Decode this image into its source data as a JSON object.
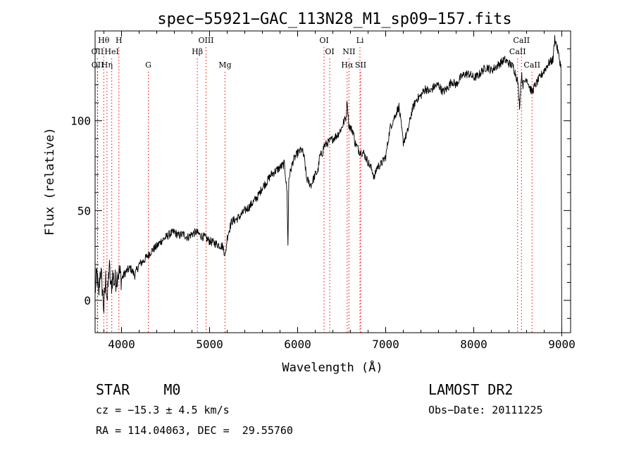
{
  "chart_data": {
    "type": "line",
    "title": "spec−55921−GAC_113N28_M1_sp09−157.fits",
    "xlabel": "Wavelength (Å)",
    "ylabel": "Flux (relative)",
    "xlim": [
      3700,
      9100
    ],
    "ylim": [
      -18,
      150
    ],
    "xticks": [
      4000,
      5000,
      6000,
      7000,
      8000,
      9000
    ],
    "yticks": [
      0,
      50,
      100
    ],
    "xtick_labels": [
      "4000",
      "5000",
      "6000",
      "7000",
      "8000",
      "9000"
    ],
    "ytick_labels": [
      "0",
      "50",
      "100"
    ],
    "grid": false,
    "series": [
      {
        "x": [
          3700,
          3720,
          3740,
          3760,
          3780,
          3800,
          3820,
          3840,
          3860,
          3880,
          3900,
          3920,
          3940,
          3960,
          3980,
          4000,
          4050,
          4100,
          4150,
          4200,
          4250,
          4300,
          4350,
          4400,
          4450,
          4500,
          4550,
          4600,
          4650,
          4700,
          4750,
          4800,
          4850,
          4900,
          4950,
          5000,
          5050,
          5100,
          5150,
          5180,
          5200,
          5250,
          5300,
          5350,
          5400,
          5450,
          5500,
          5550,
          5600,
          5650,
          5700,
          5750,
          5800,
          5850,
          5880,
          5890,
          5900,
          5920,
          5950,
          6000,
          6050,
          6080,
          6100,
          6150,
          6200,
          6230,
          6250,
          6280,
          6300,
          6350,
          6400,
          6450,
          6500,
          6530,
          6550,
          6563,
          6580,
          6600,
          6630,
          6650,
          6700,
          6750,
          6800,
          6850,
          6870,
          6900,
          6950,
          7000,
          7050,
          7100,
          7150,
          7200,
          7250,
          7300,
          7350,
          7400,
          7450,
          7500,
          7550,
          7600,
          7650,
          7700,
          7750,
          7800,
          7850,
          7900,
          7950,
          8000,
          8050,
          8100,
          8150,
          8200,
          8250,
          8300,
          8350,
          8400,
          8450,
          8500,
          8520,
          8542,
          8560,
          8600,
          8640,
          8662,
          8700,
          8750,
          8800,
          8850,
          8900,
          8920,
          8950,
          8990,
          9000
        ],
        "y": [
          5,
          15,
          2,
          18,
          8,
          -5,
          12,
          0,
          20,
          6,
          14,
          10,
          12,
          16,
          15,
          12,
          16,
          18,
          14,
          20,
          22,
          25,
          28,
          30,
          33,
          35,
          37,
          38,
          36,
          37,
          35,
          37,
          38,
          36,
          35,
          33,
          32,
          31,
          30,
          25,
          35,
          44,
          45,
          47,
          50,
          52,
          55,
          58,
          63,
          66,
          70,
          72,
          74,
          76,
          60,
          30,
          68,
          72,
          78,
          82,
          84,
          78,
          68,
          64,
          70,
          72,
          80,
          82,
          86,
          88,
          90,
          92,
          96,
          100,
          102,
          112,
          98,
          96,
          94,
          88,
          83,
          82,
          77,
          72,
          68,
          74,
          76,
          80,
          96,
          102,
          108,
          88,
          94,
          106,
          112,
          114,
          118,
          116,
          119,
          120,
          116,
          118,
          122,
          120,
          124,
          126,
          126,
          124,
          125,
          128,
          130,
          128,
          130,
          132,
          134,
          132,
          130,
          122,
          108,
          126,
          120,
          124,
          118,
          116,
          120,
          124,
          128,
          132,
          134,
          146,
          140,
          130,
          -20
        ]
      }
    ],
    "annotations": [
      "STAR    M0",
      "cz = −15.3 ± 4.5 km/s",
      "RA = 114.04063, DEC =  29.55760",
      "LAMOST DR2",
      "Obs−Date: 20111225"
    ],
    "lines": [
      {
        "label": "Hθ",
        "x": 3798,
        "row": 0,
        "color": "#000000"
      },
      {
        "label": "H",
        "x": 3970,
        "row": 0,
        "color": "#000000"
      },
      {
        "label": "OIII",
        "x": 4960,
        "row": 0,
        "color": "#000000"
      },
      {
        "label": "OI",
        "x": 6300,
        "row": 0,
        "color": "#000000"
      },
      {
        "label": "Li",
        "x": 6708,
        "row": 0,
        "color": "#000000"
      },
      {
        "label": "CaII",
        "x": 8542,
        "row": 0,
        "color": "#000000"
      },
      {
        "label": "OII",
        "x": 3727,
        "row": 1,
        "color": "#000000"
      },
      {
        "label": "HeI",
        "x": 3889,
        "row": 1,
        "color": "#000000"
      },
      {
        "label": "Hβ",
        "x": 4861,
        "row": 1,
        "color": "#000000"
      },
      {
        "label": "OI",
        "x": 6364,
        "row": 1,
        "color": "#000000"
      },
      {
        "label": "NII",
        "x": 6583,
        "row": 1,
        "color": "#000000"
      },
      {
        "label": "CaII",
        "x": 8498,
        "row": 1,
        "color": "#000000"
      },
      {
        "label": "OII",
        "x": 3729,
        "row": 2,
        "color": "#000000"
      },
      {
        "label": "Hη",
        "x": 3835,
        "row": 2,
        "color": "#000000"
      },
      {
        "label": "G",
        "x": 4304,
        "row": 2,
        "color": "#000000"
      },
      {
        "label": "Mg",
        "x": 5175,
        "row": 2,
        "color": "#000000"
      },
      {
        "label": "Hα",
        "x": 6563,
        "row": 2,
        "color": "#000000"
      },
      {
        "label": "SII",
        "x": 6716,
        "row": 2,
        "color": "#000000"
      },
      {
        "label": "CaII",
        "x": 8662,
        "row": 2,
        "color": "#000000"
      }
    ],
    "marker_color": "#ff0000"
  }
}
